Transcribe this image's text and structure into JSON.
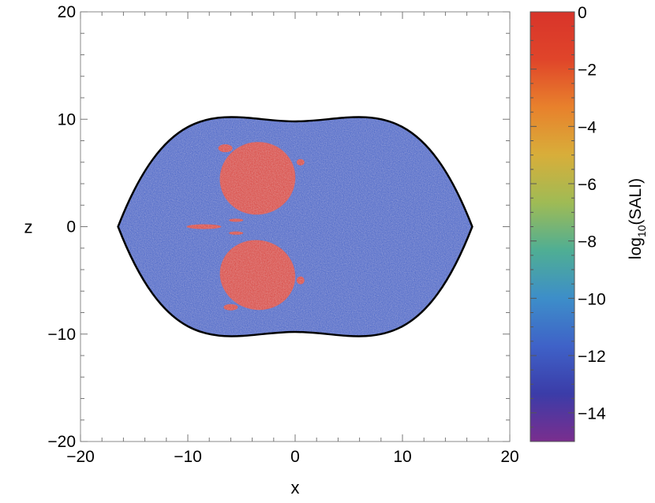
{
  "chart_data": {
    "type": "heatmap",
    "title": "",
    "xlabel": "x",
    "ylabel": "z",
    "xlim": [
      -20,
      20
    ],
    "ylim": [
      -20,
      20
    ],
    "x_ticks": [
      -20,
      -10,
      0,
      10,
      20
    ],
    "y_ticks": [
      -20,
      -10,
      0,
      10,
      20
    ],
    "x_tick_labels": [
      "−20",
      "−10",
      "0",
      "10",
      "20"
    ],
    "y_tick_labels": [
      "−20",
      "−10",
      "0",
      "10",
      "20"
    ],
    "boundary": {
      "shape": "lens-shaped region",
      "x_range": [
        -16.5,
        16.5
      ],
      "z_range": [
        -9.8,
        9.8
      ],
      "color": "#000000"
    },
    "background_value_range": [
      -13,
      -11
    ],
    "regions": [
      {
        "label": "upper-island",
        "center": [
          -3.5,
          4.5
        ],
        "value": 0
      },
      {
        "label": "lower-island",
        "center": [
          -3.5,
          -4.5
        ],
        "value": 0
      },
      {
        "label": "left-streak",
        "center": [
          -8.5,
          0
        ],
        "value": -0.5
      }
    ],
    "colorbar": {
      "label_parts": {
        "prefix": "log",
        "subscript": "10",
        "suffix": "(SALI)"
      },
      "range": [
        -15,
        0
      ],
      "ticks": [
        0,
        -2,
        -4,
        -6,
        -8,
        -10,
        -12,
        -14
      ],
      "tick_labels": [
        "0",
        "−2",
        "−4",
        "−6",
        "−8",
        "−10",
        "−12",
        "−14"
      ],
      "colors": [
        "#7a2e8e",
        "#3b3ca8",
        "#3f62c8",
        "#3d8ec9",
        "#4fae94",
        "#9fbb55",
        "#d8ae3a",
        "#e8812c",
        "#e0452a",
        "#d8342a"
      ]
    }
  }
}
